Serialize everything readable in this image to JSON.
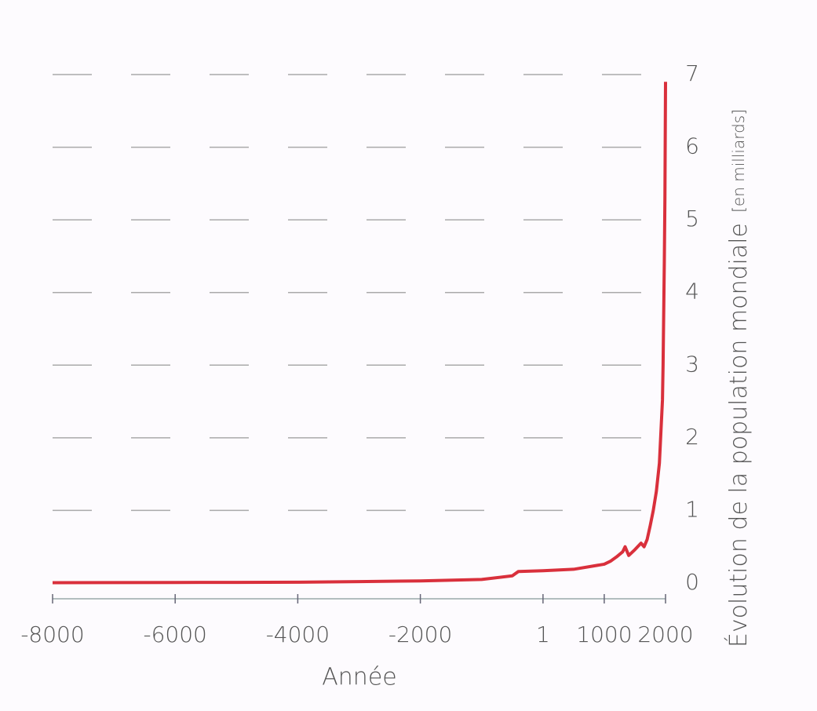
{
  "chart_data": {
    "type": "line",
    "xlabel": "Année",
    "ylabel": "Évolution de la population mondiale",
    "ylabel_unit": "[en milliards]",
    "x": [
      -8000,
      -6000,
      -5000,
      -4000,
      -3000,
      -2000,
      -1000,
      -500,
      -400,
      1,
      500,
      1000,
      1100,
      1200,
      1300,
      1340,
      1400,
      1500,
      1600,
      1650,
      1700,
      1750,
      1800,
      1850,
      1900,
      1950,
      1960,
      1970,
      1980,
      1990,
      2000
    ],
    "series": [
      {
        "name": "Population mondiale",
        "color": "#d9303c",
        "values": [
          0.005,
          0.008,
          0.01,
          0.012,
          0.02,
          0.03,
          0.05,
          0.1,
          0.16,
          0.17,
          0.19,
          0.26,
          0.3,
          0.36,
          0.43,
          0.5,
          0.38,
          0.46,
          0.55,
          0.5,
          0.6,
          0.79,
          1.0,
          1.26,
          1.65,
          2.52,
          3.0,
          3.7,
          4.4,
          5.3,
          6.9
        ]
      }
    ],
    "xlim": [
      -8000,
      2000
    ],
    "ylim": [
      0,
      7
    ],
    "xticks": [
      -8000,
      -6000,
      -4000,
      -2000,
      1,
      1000,
      2000
    ],
    "yticks": [
      0,
      1,
      2,
      3,
      4,
      5,
      6,
      7
    ],
    "grid": true,
    "y_axis_side": "right"
  }
}
